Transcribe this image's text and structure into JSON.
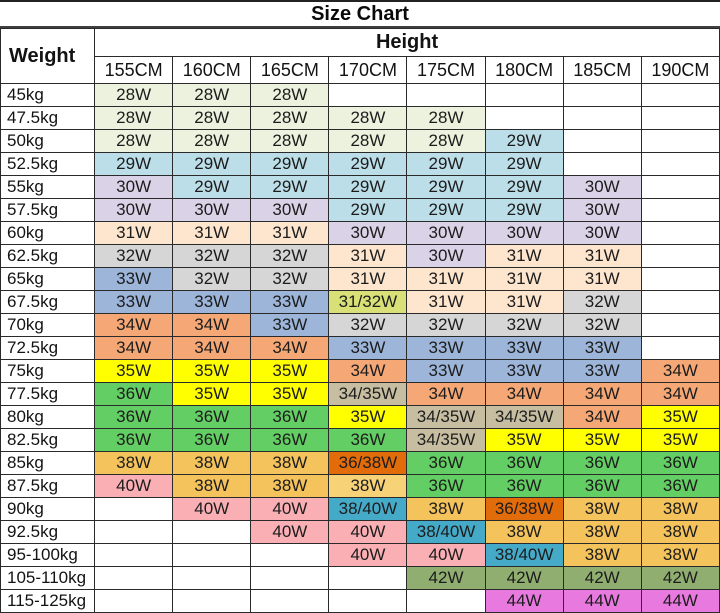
{
  "title": "Size Chart",
  "chart_data": {
    "type": "table",
    "title": "Size Chart",
    "row_group_label": "Weight",
    "col_group_label": "Height",
    "columns": [
      "155CM",
      "160CM",
      "165CM",
      "170CM",
      "175CM",
      "180CM",
      "185CM",
      "190CM"
    ],
    "rows": [
      {
        "label": "45kg",
        "cells": [
          [
            "28W",
            "palegreen"
          ],
          [
            "28W",
            "palegreen"
          ],
          [
            "28W",
            "palegreen"
          ],
          [
            "",
            "blank"
          ],
          [
            "",
            "blank"
          ],
          [
            "",
            "blank"
          ],
          [
            "",
            "blank"
          ],
          [
            "",
            "blank"
          ]
        ]
      },
      {
        "label": "47.5kg",
        "cells": [
          [
            "28W",
            "palegreen"
          ],
          [
            "28W",
            "palegreen"
          ],
          [
            "28W",
            "palegreen"
          ],
          [
            "28W",
            "palegreen"
          ],
          [
            "28W",
            "palegreen"
          ],
          [
            "",
            "blank"
          ],
          [
            "",
            "blank"
          ],
          [
            "",
            "blank"
          ]
        ]
      },
      {
        "label": "50kg",
        "cells": [
          [
            "28W",
            "palegreen"
          ],
          [
            "28W",
            "palegreen"
          ],
          [
            "28W",
            "palegreen"
          ],
          [
            "28W",
            "palegreen"
          ],
          [
            "28W",
            "palegreen"
          ],
          [
            "29W",
            "lightblue"
          ],
          [
            "",
            "blank"
          ],
          [
            "",
            "blank"
          ]
        ]
      },
      {
        "label": "52.5kg",
        "cells": [
          [
            "29W",
            "lightblue"
          ],
          [
            "29W",
            "lightblue"
          ],
          [
            "29W",
            "lightblue"
          ],
          [
            "29W",
            "lightblue"
          ],
          [
            "29W",
            "lightblue"
          ],
          [
            "29W",
            "lightblue"
          ],
          [
            "",
            "blank"
          ],
          [
            "",
            "blank"
          ]
        ]
      },
      {
        "label": "55kg",
        "cells": [
          [
            "30W",
            "lavender"
          ],
          [
            "29W",
            "lightblue"
          ],
          [
            "29W",
            "lightblue"
          ],
          [
            "29W",
            "lightblue"
          ],
          [
            "29W",
            "lightblue"
          ],
          [
            "29W",
            "lightblue"
          ],
          [
            "30W",
            "lavender"
          ],
          [
            "",
            "blank"
          ]
        ]
      },
      {
        "label": "57.5kg",
        "cells": [
          [
            "30W",
            "lavender"
          ],
          [
            "30W",
            "lavender"
          ],
          [
            "30W",
            "lavender"
          ],
          [
            "29W",
            "lightblue"
          ],
          [
            "29W",
            "lightblue"
          ],
          [
            "29W",
            "lightblue"
          ],
          [
            "30W",
            "lavender"
          ],
          [
            "",
            "blank"
          ]
        ]
      },
      {
        "label": "60kg",
        "cells": [
          [
            "31W",
            "peach"
          ],
          [
            "31W",
            "peach"
          ],
          [
            "31W",
            "peach"
          ],
          [
            "30W",
            "lavender"
          ],
          [
            "30W",
            "lavender"
          ],
          [
            "30W",
            "lavender"
          ],
          [
            "30W",
            "lavender"
          ],
          [
            "",
            "blank"
          ]
        ]
      },
      {
        "label": "62.5kg",
        "cells": [
          [
            "32W",
            "gray"
          ],
          [
            "32W",
            "gray"
          ],
          [
            "32W",
            "gray"
          ],
          [
            "31W",
            "peach"
          ],
          [
            "30W",
            "lavender"
          ],
          [
            "31W",
            "peach"
          ],
          [
            "31W",
            "peach"
          ],
          [
            "",
            "blank"
          ]
        ]
      },
      {
        "label": "65kg",
        "cells": [
          [
            "33W",
            "blue"
          ],
          [
            "32W",
            "gray"
          ],
          [
            "32W",
            "gray"
          ],
          [
            "31W",
            "peach"
          ],
          [
            "31W",
            "peach"
          ],
          [
            "31W",
            "peach"
          ],
          [
            "31W",
            "peach"
          ],
          [
            "",
            "blank"
          ]
        ]
      },
      {
        "label": "67.5kg",
        "cells": [
          [
            "33W",
            "blue"
          ],
          [
            "33W",
            "blue"
          ],
          [
            "33W",
            "blue"
          ],
          [
            "31/32W",
            "yellowgreen"
          ],
          [
            "31W",
            "peach"
          ],
          [
            "31W",
            "peach"
          ],
          [
            "32W",
            "gray"
          ],
          [
            "",
            "blank"
          ]
        ]
      },
      {
        "label": "70kg",
        "cells": [
          [
            "34W",
            "orange"
          ],
          [
            "34W",
            "orange"
          ],
          [
            "33W",
            "blue"
          ],
          [
            "32W",
            "gray"
          ],
          [
            "32W",
            "gray"
          ],
          [
            "32W",
            "gray"
          ],
          [
            "32W",
            "gray"
          ],
          [
            "",
            "blank"
          ]
        ]
      },
      {
        "label": "72.5kg",
        "cells": [
          [
            "34W",
            "orange"
          ],
          [
            "34W",
            "orange"
          ],
          [
            "34W",
            "orange"
          ],
          [
            "33W",
            "blue"
          ],
          [
            "33W",
            "blue"
          ],
          [
            "33W",
            "blue"
          ],
          [
            "33W",
            "blue"
          ],
          [
            "",
            "blank"
          ]
        ]
      },
      {
        "label": "75kg",
        "cells": [
          [
            "35W",
            "yellow"
          ],
          [
            "35W",
            "yellow"
          ],
          [
            "35W",
            "yellow"
          ],
          [
            "34W",
            "orange"
          ],
          [
            "33W",
            "blue"
          ],
          [
            "33W",
            "blue"
          ],
          [
            "33W",
            "blue"
          ],
          [
            "34W",
            "orange"
          ]
        ]
      },
      {
        "label": "77.5kg",
        "cells": [
          [
            "36W",
            "green"
          ],
          [
            "35W",
            "yellow"
          ],
          [
            "35W",
            "yellow"
          ],
          [
            "34/35W",
            "tan"
          ],
          [
            "34W",
            "orange"
          ],
          [
            "34W",
            "orange"
          ],
          [
            "34W",
            "orange"
          ],
          [
            "34W",
            "orange"
          ]
        ]
      },
      {
        "label": "80kg",
        "cells": [
          [
            "36W",
            "green"
          ],
          [
            "36W",
            "green"
          ],
          [
            "36W",
            "green"
          ],
          [
            "35W",
            "yellow"
          ],
          [
            "34/35W",
            "tan"
          ],
          [
            "34/35W",
            "tan"
          ],
          [
            "34W",
            "orange"
          ],
          [
            "35W",
            "yellow"
          ]
        ]
      },
      {
        "label": "82.5kg",
        "cells": [
          [
            "36W",
            "green"
          ],
          [
            "36W",
            "green"
          ],
          [
            "36W",
            "green"
          ],
          [
            "36W",
            "green"
          ],
          [
            "34/35W",
            "tan"
          ],
          [
            "35W",
            "yellow"
          ],
          [
            "35W",
            "yellow"
          ],
          [
            "35W",
            "yellow"
          ]
        ]
      },
      {
        "label": "85kg",
        "cells": [
          [
            "38W",
            "gold"
          ],
          [
            "38W",
            "gold"
          ],
          [
            "38W",
            "gold"
          ],
          [
            "36/38W",
            "darkorange"
          ],
          [
            "36W",
            "green"
          ],
          [
            "36W",
            "green"
          ],
          [
            "36W",
            "green"
          ],
          [
            "36W",
            "green"
          ]
        ]
      },
      {
        "label": "87.5kg",
        "cells": [
          [
            "40W",
            "pink"
          ],
          [
            "38W",
            "gold"
          ],
          [
            "38W",
            "gold"
          ],
          [
            "38W",
            "goldlight"
          ],
          [
            "36W",
            "green"
          ],
          [
            "36W",
            "green"
          ],
          [
            "36W",
            "green"
          ],
          [
            "36W",
            "green"
          ]
        ]
      },
      {
        "label": "90kg",
        "cells": [
          [
            "",
            "blank"
          ],
          [
            "40W",
            "pink"
          ],
          [
            "40W",
            "pink"
          ],
          [
            "38/40W",
            "teal"
          ],
          [
            "38W",
            "gold"
          ],
          [
            "36/38W",
            "darkorange"
          ],
          [
            "38W",
            "gold"
          ],
          [
            "38W",
            "gold"
          ]
        ]
      },
      {
        "label": "92.5kg",
        "cells": [
          [
            "",
            "blank"
          ],
          [
            "",
            "blank"
          ],
          [
            "40W",
            "pink"
          ],
          [
            "40W",
            "pink"
          ],
          [
            "38/40W",
            "teal"
          ],
          [
            "38W",
            "gold"
          ],
          [
            "38W",
            "gold"
          ],
          [
            "38W",
            "gold"
          ]
        ]
      },
      {
        "label": "95-100kg",
        "cells": [
          [
            "",
            "blank"
          ],
          [
            "",
            "blank"
          ],
          [
            "",
            "blank"
          ],
          [
            "40W",
            "pink"
          ],
          [
            "40W",
            "pink"
          ],
          [
            "38/40W",
            "teal"
          ],
          [
            "38W",
            "gold"
          ],
          [
            "38W",
            "gold"
          ]
        ]
      },
      {
        "label": "105-110kg",
        "cells": [
          [
            "",
            "blank"
          ],
          [
            "",
            "blank"
          ],
          [
            "",
            "blank"
          ],
          [
            "",
            "blank"
          ],
          [
            "42W",
            "sage"
          ],
          [
            "42W",
            "sage"
          ],
          [
            "42W",
            "sage"
          ],
          [
            "42W",
            "sage"
          ]
        ]
      },
      {
        "label": "115-125kg",
        "cells": [
          [
            "",
            "blank"
          ],
          [
            "",
            "blank"
          ],
          [
            "",
            "blank"
          ],
          [
            "",
            "blank"
          ],
          [
            "",
            "blank"
          ],
          [
            "44W",
            "magenta"
          ],
          [
            "44W",
            "magenta"
          ],
          [
            "44W",
            "magenta"
          ]
        ]
      }
    ]
  },
  "colors": {
    "palegreen": "#EDF2DE",
    "lightblue": "#BCDEE8",
    "lavender": "#DAD3E8",
    "peach": "#FDE5CE",
    "gray": "#D6D6D6",
    "blue": "#9CB5D9",
    "orange": "#F5A876",
    "yellow": "#FFFF00",
    "green": "#63CE63",
    "yellowgreen": "#D8E077",
    "tan": "#C7BEA2",
    "gold": "#F5C35B",
    "goldlight": "#F8D277",
    "darkorange": "#E36C0A",
    "pink": "#F9AFB4",
    "teal": "#45AAC8",
    "sage": "#90AE70",
    "magenta": "#E87ADF",
    "blank": "#FFFFFF"
  }
}
